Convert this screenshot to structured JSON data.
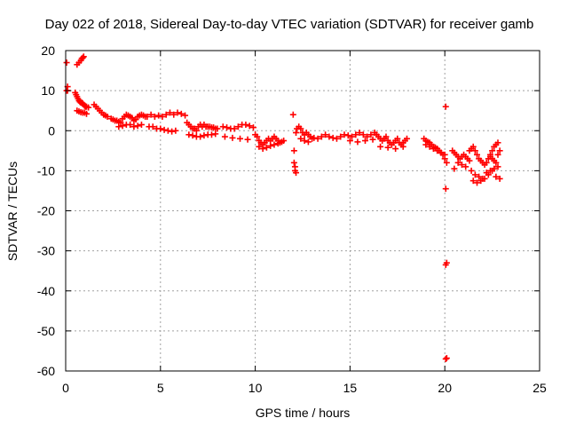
{
  "chart_data": {
    "type": "scatter",
    "title": "Day 022 of 2018, Sidereal Day-to-day VTEC variation (SDTVAR) for receiver gamb",
    "xlabel": "GPS time / hours",
    "ylabel": "SDTVAR / TECUs",
    "xlim": [
      0,
      25
    ],
    "ylim": [
      -60,
      20
    ],
    "xticks": [
      0,
      5,
      10,
      15,
      20,
      25
    ],
    "yticks": [
      20,
      10,
      0,
      -10,
      -20,
      -30,
      -40,
      -50,
      -60
    ],
    "grid": true,
    "marker": "plus",
    "color": "#ff0000",
    "series": [
      {
        "name": "SDTVAR",
        "x": [
          0.05,
          0.05,
          0.1,
          0.1,
          0.6,
          0.7,
          0.8,
          0.85,
          0.9,
          0.95,
          0.5,
          0.55,
          0.6,
          0.65,
          0.7,
          0.75,
          0.8,
          0.85,
          0.9,
          0.95,
          1.0,
          1.05,
          1.1,
          1.2,
          0.6,
          0.7,
          0.8,
          0.9,
          1.0,
          1.1,
          1.5,
          1.6,
          1.7,
          1.8,
          1.9,
          2.0,
          2.1,
          2.2,
          2.4,
          2.5,
          2.6,
          2.7,
          2.8,
          2.9,
          3.0,
          3.1,
          3.2,
          3.3,
          3.4,
          3.5,
          3.6,
          3.7,
          3.8,
          3.9,
          4.0,
          4.1,
          4.2,
          2.8,
          3.0,
          3.2,
          3.4,
          3.6,
          3.8,
          4.0,
          4.3,
          4.5,
          4.7,
          4.9,
          5.1,
          5.3,
          5.5,
          5.7,
          5.9,
          6.1,
          6.3,
          4.4,
          4.6,
          4.8,
          5.0,
          5.2,
          5.4,
          5.6,
          5.8,
          6.4,
          6.5,
          6.6,
          6.7,
          6.8,
          6.9,
          7.0,
          7.1,
          7.2,
          7.3,
          7.4,
          7.5,
          7.6,
          7.7,
          7.8,
          7.9,
          8.0,
          6.5,
          6.7,
          6.9,
          7.1,
          7.3,
          7.5,
          7.7,
          7.9,
          8.3,
          8.5,
          8.7,
          8.9,
          9.1,
          9.3,
          9.5,
          9.7,
          9.9,
          8.4,
          8.8,
          9.2,
          9.6,
          10.0,
          10.1,
          10.2,
          10.3,
          10.4,
          10.5,
          10.6,
          10.7,
          10.8,
          10.9,
          11.0,
          11.1,
          11.2,
          11.3,
          11.4,
          11.5,
          10.2,
          10.4,
          10.6,
          10.8,
          11.0,
          11.2,
          12.0,
          12.05,
          12.05,
          12.1,
          12.1,
          12.15,
          12.15,
          12.2,
          12.3,
          12.4,
          12.5,
          12.6,
          12.7,
          12.8,
          12.9,
          13.0,
          13.1,
          12.4,
          12.6,
          12.8,
          13.3,
          13.5,
          13.7,
          13.9,
          14.1,
          14.3,
          14.5,
          14.7,
          14.9,
          15.1,
          15.3,
          15.5,
          15.7,
          15.9,
          16.1,
          16.3,
          15.0,
          15.4,
          15.8,
          16.2,
          16.4,
          16.5,
          16.6,
          16.7,
          16.8,
          16.9,
          17.0,
          17.1,
          17.2,
          17.3,
          17.4,
          17.5,
          17.6,
          17.7,
          17.8,
          17.9,
          18.0,
          16.6,
          17.0,
          17.4,
          17.8,
          18.9,
          19.0,
          19.1,
          19.2,
          19.3,
          19.4,
          19.5,
          19.6,
          19.7,
          19.8,
          19.9,
          20.0,
          20.1,
          19.0,
          19.2,
          19.4,
          19.6,
          19.8,
          20.0,
          20.05,
          20.05,
          20.05,
          20.05,
          20.1,
          20.1,
          20.4,
          20.5,
          20.6,
          20.7,
          20.8,
          20.9,
          21.0,
          21.1,
          21.2,
          21.3,
          20.5,
          20.7,
          20.9,
          21.1,
          21.3,
          21.4,
          21.5,
          21.6,
          21.7,
          21.8,
          21.9,
          22.0,
          22.1,
          22.2,
          22.3,
          22.4,
          22.5,
          22.6,
          22.7,
          22.8,
          21.4,
          21.6,
          21.8,
          22.0,
          22.2,
          22.4,
          22.6,
          22.8,
          21.5,
          21.7,
          21.9,
          22.1,
          22.3,
          22.5,
          22.7,
          22.9,
          22.4,
          22.5,
          22.6,
          22.7,
          22.8,
          22.9
        ],
        "y": [
          17,
          10,
          11,
          10,
          16.5,
          17,
          17.5,
          18,
          18.2,
          18.5,
          9.5,
          9.0,
          8.5,
          8.0,
          7.5,
          7.2,
          7.0,
          7.0,
          6.8,
          6.5,
          6.2,
          6.0,
          6.0,
          5.8,
          5,
          4.8,
          4.6,
          4.5,
          4.5,
          4.2,
          6.5,
          6.0,
          5.5,
          5.0,
          4.5,
          4.0,
          3.8,
          3.5,
          3.0,
          2.8,
          2.5,
          2.5,
          2.2,
          2.0,
          3.0,
          3.5,
          4.0,
          3.8,
          3.5,
          3.2,
          2.5,
          2.8,
          3.5,
          3.8,
          4.0,
          3.8,
          3.5,
          1.0,
          1.2,
          1.5,
          1.5,
          1.0,
          1.2,
          1.5,
          3.5,
          4.0,
          3.5,
          3.8,
          3.5,
          4.0,
          4.5,
          4.0,
          4.5,
          4.2,
          3.8,
          1.0,
          1.0,
          0.5,
          0.5,
          0.2,
          0.0,
          -0.2,
          0.0,
          2.0,
          1.5,
          1.0,
          0.5,
          0.5,
          0.0,
          1.0,
          1.5,
          1.0,
          1.5,
          1.0,
          1.0,
          1.0,
          0.8,
          0.8,
          0.5,
          0.5,
          -1.0,
          -1.2,
          -1.5,
          -1.5,
          -1.2,
          -1.0,
          -1.0,
          -0.8,
          1.0,
          0.8,
          0.5,
          0.5,
          1.0,
          1.5,
          1.5,
          1.2,
          0.8,
          -1.5,
          -1.8,
          -2.0,
          -2.2,
          -1.0,
          -1.5,
          -2.5,
          -3.0,
          -3.5,
          -3.0,
          -2.5,
          -2.0,
          -2.5,
          -2.0,
          -1.5,
          -2.0,
          -2.5,
          -3.0,
          -2.8,
          -2.5,
          -4.0,
          -4.5,
          -4.2,
          -3.8,
          -3.5,
          -3.2,
          4.0,
          -5.0,
          -8.0,
          -9.0,
          -10.0,
          -10.5,
          -0.5,
          0.5,
          1.0,
          0.5,
          -0.5,
          -1.0,
          -0.5,
          -1.0,
          -1.5,
          -2.0,
          -1.8,
          -2.0,
          -2.5,
          -2.8,
          -2.0,
          -1.5,
          -1.0,
          -1.5,
          -1.8,
          -2.0,
          -1.5,
          -1.0,
          -1.2,
          -1.5,
          -1.0,
          -0.5,
          -1.0,
          -1.5,
          -1.0,
          -0.5,
          -2.5,
          -2.8,
          -2.5,
          -2.2,
          -1.0,
          -1.5,
          -2.0,
          -2.5,
          -2.0,
          -1.5,
          -2.5,
          -3.0,
          -3.5,
          -3.0,
          -2.5,
          -2.0,
          -3.0,
          -3.5,
          -3.0,
          -2.5,
          -2.0,
          -4.0,
          -4.2,
          -4.5,
          -4.0,
          -2.0,
          -2.5,
          -2.8,
          -3.0,
          -3.5,
          -4.0,
          -4.2,
          -4.5,
          -5.0,
          -5.5,
          -6.0,
          -7.0,
          -8.0,
          -3.5,
          -4.0,
          -4.5,
          -5.0,
          -5.5,
          -6.0,
          6.0,
          -14.5,
          -33.5,
          -57.0,
          -56.8,
          -33.0,
          -5.0,
          -5.5,
          -6.0,
          -6.5,
          -7.0,
          -6.5,
          -6.0,
          -6.5,
          -7.0,
          -7.5,
          -9.5,
          -8.0,
          -8.5,
          -9.0,
          -5.0,
          -4.5,
          -4.0,
          -5.0,
          -6.0,
          -7.0,
          -7.5,
          -8.0,
          -8.5,
          -8.0,
          -7.0,
          -6.0,
          -5.0,
          -4.0,
          -3.5,
          -3.0,
          -10.0,
          -11.0,
          -11.5,
          -12.0,
          -10.5,
          -10.0,
          -9.5,
          -9.0,
          -12.5,
          -13.0,
          -12.5,
          -12.0,
          -11.0,
          -10.0,
          -11.5,
          -12.0,
          -6.5,
          -7.0,
          -7.5,
          -8.0,
          -6.0,
          -5.0
        ]
      }
    ]
  }
}
